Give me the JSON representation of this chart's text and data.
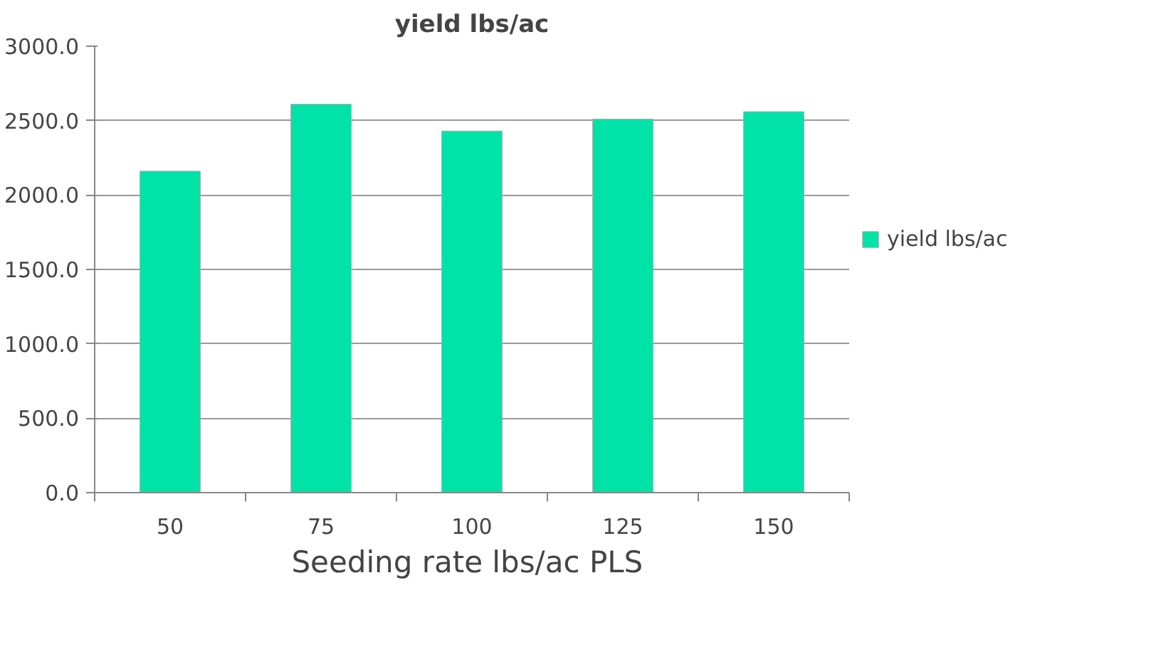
{
  "chart_data": {
    "type": "bar",
    "title": "yield lbs/ac",
    "xlabel": "Seeding rate  lbs/ac PLS",
    "categories": [
      "50",
      "75",
      "100",
      "125",
      "150"
    ],
    "series": [
      {
        "name": "yield lbs/ac",
        "color": "#00e3a8",
        "values": [
          2160,
          2610,
          2430,
          2510,
          2560
        ]
      }
    ],
    "ylim": [
      0,
      3000
    ],
    "yticks": [
      {
        "value": 0,
        "label": "0.0"
      },
      {
        "value": 500,
        "label": "500.0"
      },
      {
        "value": 1000,
        "label": "1000.0"
      },
      {
        "value": 1500,
        "label": "1500.0"
      },
      {
        "value": 2000,
        "label": "2000.0"
      },
      {
        "value": 2500,
        "label": "2500.0"
      },
      {
        "value": 3000,
        "label": "3000.0"
      }
    ],
    "grid": "y",
    "legend": "right"
  }
}
